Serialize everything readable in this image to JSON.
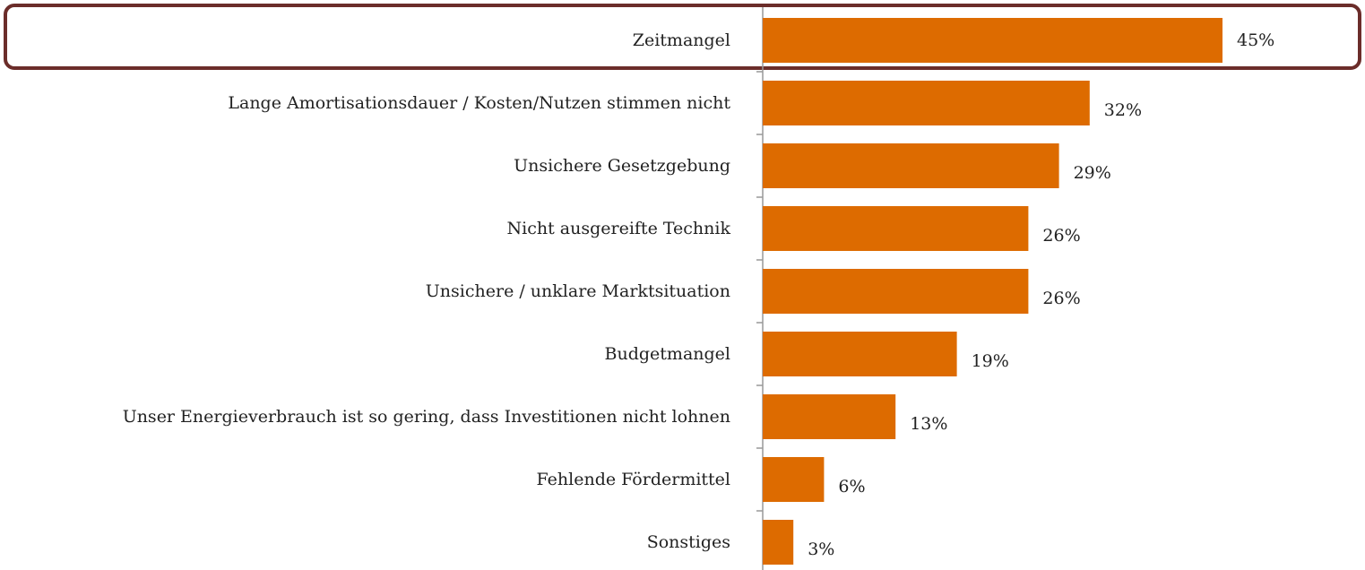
{
  "chart_data": {
    "type": "bar",
    "orientation": "horizontal",
    "categories": [
      "Zeitmangel",
      "Lange Amortisationsdauer / Kosten/Nutzen stimmen nicht",
      "Unsichere Gesetzgebung",
      "Nicht ausgereifte Technik",
      "Unsichere / unklare Marktsituation",
      "Budgetmangel",
      "Unser Energieverbrauch ist so gering, dass Investitionen nicht lohnen",
      "Fehlende Fördermittel",
      "Sonstiges"
    ],
    "values": [
      45,
      32,
      29,
      26,
      26,
      19,
      13,
      6,
      3
    ],
    "value_labels": [
      "45%",
      "32%",
      "29%",
      "26%",
      "26%",
      "19%",
      "13%",
      "6%",
      "3%"
    ],
    "color": "#dd6b00"
  }
}
